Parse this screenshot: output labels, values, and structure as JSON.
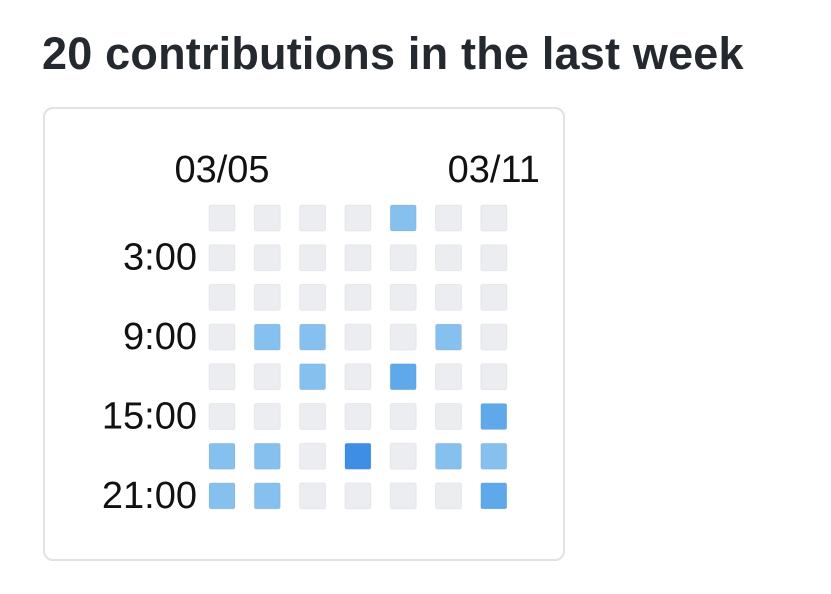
{
  "chart_data": {
    "type": "heatmap",
    "title": "20 contributions in the last week",
    "x_tick_labels": [
      {
        "column": 0,
        "text": "03/05"
      },
      {
        "column": 6,
        "text": "03/11"
      }
    ],
    "y_tick_labels": [
      {
        "row": 1,
        "text": "3:00"
      },
      {
        "row": 3,
        "text": "9:00"
      },
      {
        "row": 5,
        "text": "15:00"
      },
      {
        "row": 7,
        "text": "21:00"
      }
    ],
    "columns": 7,
    "rows": 8,
    "cell_colors": {
      "0": "#ebedf0",
      "1": "#86c0ef",
      "2": "#5fa9ea",
      "3": "#3f8ee6"
    },
    "values": [
      [
        0,
        0,
        0,
        0,
        1,
        0,
        0
      ],
      [
        0,
        0,
        0,
        0,
        0,
        0,
        0
      ],
      [
        0,
        0,
        0,
        0,
        0,
        0,
        0
      ],
      [
        0,
        1,
        1,
        0,
        0,
        1,
        0
      ],
      [
        0,
        0,
        1,
        0,
        2,
        0,
        0
      ],
      [
        0,
        0,
        0,
        0,
        0,
        0,
        2
      ],
      [
        1,
        1,
        0,
        3,
        0,
        1,
        1
      ],
      [
        1,
        1,
        0,
        0,
        0,
        0,
        2
      ]
    ]
  }
}
